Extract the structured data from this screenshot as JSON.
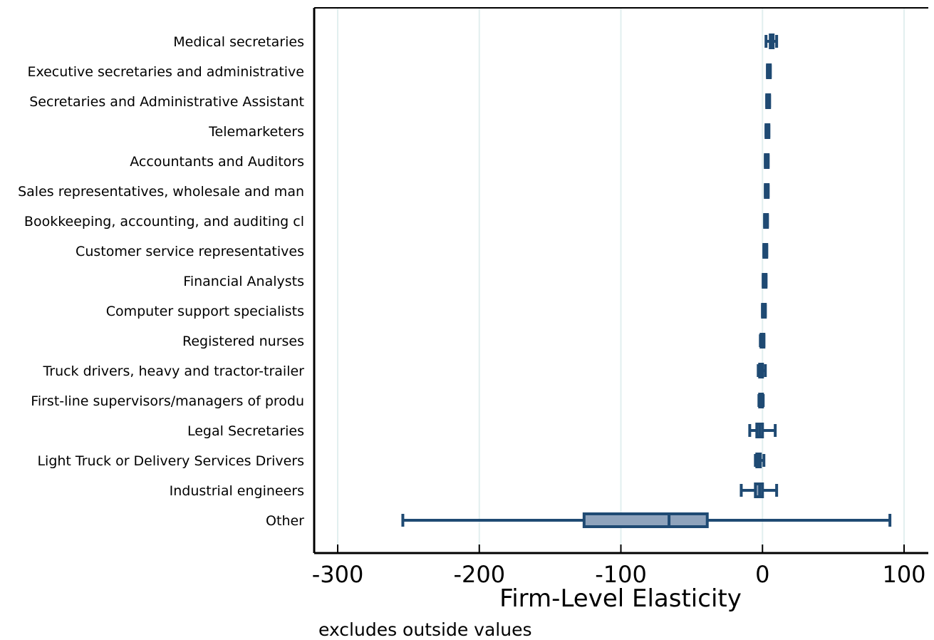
{
  "chart_data": {
    "type": "boxplot",
    "orientation": "horizontal",
    "title": "",
    "xlabel": "Firm-Level Elasticity",
    "ylabel": "",
    "note": "excludes outside values",
    "xlim": [
      -317,
      117
    ],
    "xticks": [
      -300,
      -200,
      -100,
      0,
      100
    ],
    "xtick_labels": [
      "-300",
      "-200",
      "-100",
      "0",
      "100"
    ],
    "grid": "vertical",
    "colors": {
      "box_fill": "#8fa3bc",
      "line": "#1f4a73",
      "grid": "#e2efef",
      "axis": "#000000"
    },
    "categories": [
      "Medical secretaries",
      "Executive secretaries and administrative",
      "Secretaries and Administrative Assistant",
      "Telemarketers",
      "Accountants and Auditors",
      "Sales representatives, wholesale and man",
      "Bookkeeping, accounting, and auditing cl",
      "Customer service representatives",
      "Financial Analysts",
      "Computer support specialists",
      "Registered nurses",
      "Truck drivers, heavy and tractor-trailer",
      "First-line supervisors/managers of produ",
      "Legal Secretaries",
      "Light Truck or Delivery Services Drivers",
      "Industrial engineers",
      "Other"
    ],
    "boxes": [
      {
        "min": 2.5,
        "q1": 5.5,
        "median": 6.5,
        "q3": 7.5,
        "max": 10
      },
      {
        "min": 3.5,
        "q1": 3.5,
        "median": 4.5,
        "q3": 5.5,
        "max": 5.5
      },
      {
        "min": 3,
        "q1": 3,
        "median": 4,
        "q3": 5,
        "max": 5
      },
      {
        "min": 2.5,
        "q1": 2.5,
        "median": 3.5,
        "q3": 4.5,
        "max": 4.5
      },
      {
        "min": 2,
        "q1": 2,
        "median": 3,
        "q3": 4,
        "max": 4
      },
      {
        "min": 2,
        "q1": 2,
        "median": 3,
        "q3": 4,
        "max": 4
      },
      {
        "min": 1.5,
        "q1": 1.5,
        "median": 2.5,
        "q3": 3.5,
        "max": 3.5
      },
      {
        "min": 1,
        "q1": 1,
        "median": 2,
        "q3": 3,
        "max": 3
      },
      {
        "min": 0.5,
        "q1": 0.5,
        "median": 1.5,
        "q3": 2.5,
        "max": 2.5
      },
      {
        "min": 0,
        "q1": 0,
        "median": 1,
        "q3": 2,
        "max": 2
      },
      {
        "min": -1.5,
        "q1": -1,
        "median": 0,
        "q3": 0.5,
        "max": 1
      },
      {
        "min": -3,
        "q1": -2,
        "median": -1,
        "q3": 0,
        "max": 2
      },
      {
        "min": -2.5,
        "q1": -2,
        "median": -1,
        "q3": 0,
        "max": 0.5
      },
      {
        "min": -9,
        "q1": -4,
        "median": -2,
        "q3": 0,
        "max": 9
      },
      {
        "min": -5,
        "q1": -4,
        "median": -3,
        "q3": -1.5,
        "max": 1
      },
      {
        "min": -15,
        "q1": -5,
        "median": -2,
        "q3": 0,
        "max": 10
      },
      {
        "min": -254,
        "q1": -126,
        "median": -66,
        "q3": -39,
        "max": 90
      }
    ]
  }
}
